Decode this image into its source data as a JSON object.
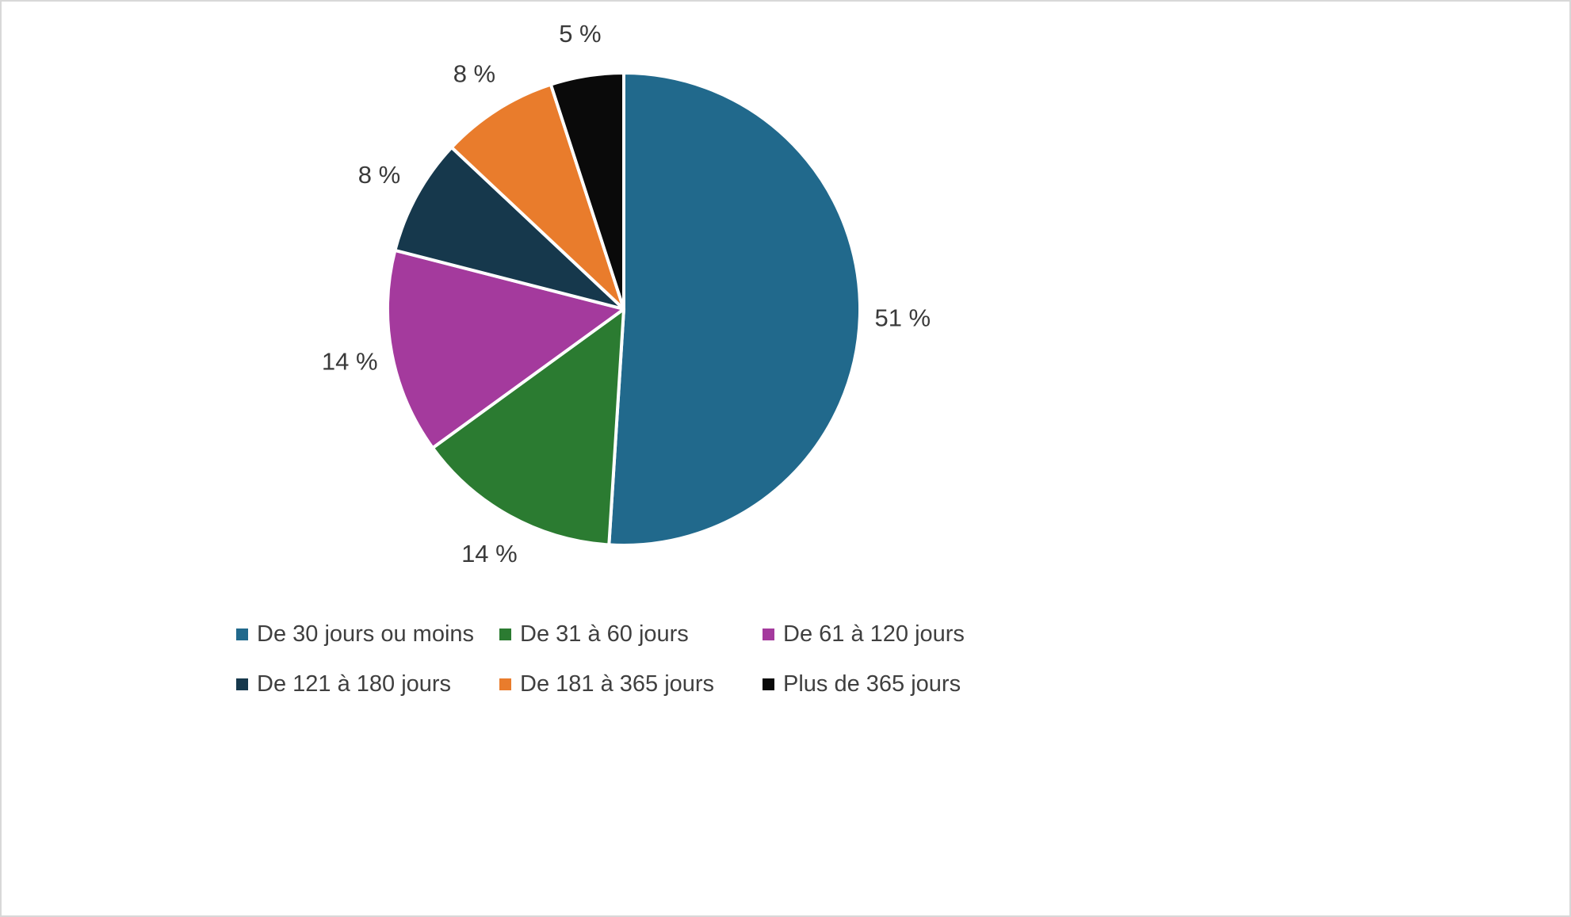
{
  "chart_data": {
    "type": "pie",
    "title": "",
    "direction": "clockwise",
    "start_angle_deg": 0,
    "categories": [
      "De 30 jours ou moins",
      "De 31 à 60 jours",
      "De 61 à 120 jours",
      "De 121 à 180 jours",
      "De 181 à 365 jours",
      "Plus de 365 jours"
    ],
    "values": [
      51,
      14,
      14,
      8,
      8,
      5
    ],
    "labels": [
      "51 %",
      "14 %",
      "14 %",
      "8 %",
      "8 %",
      "5 %"
    ],
    "colors": [
      "#21698C",
      "#2B7B31",
      "#A43A9D",
      "#16384C",
      "#E97C2C",
      "#0A0A0A"
    ],
    "label_color": "#3A3A3A",
    "legend_position": "bottom",
    "slice_border_color": "#FFFFFF"
  }
}
